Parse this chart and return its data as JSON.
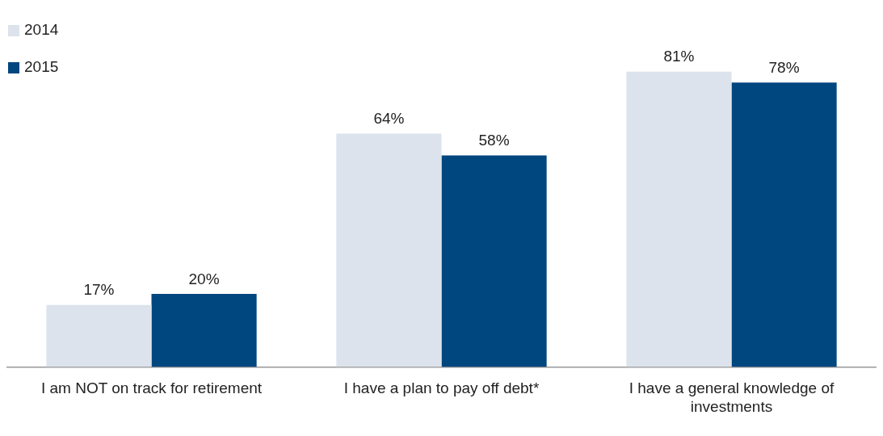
{
  "chart_data": {
    "type": "bar",
    "categories": [
      "I am NOT on track for retirement",
      "I have a plan to pay off debt*",
      "I have a general knowledge of investments"
    ],
    "series": [
      {
        "name": "2014",
        "color": "#dce3ec",
        "values": [
          17,
          64,
          81
        ],
        "value_labels": [
          "17%",
          "64%",
          "81%"
        ]
      },
      {
        "name": "2015",
        "color": "#00467f",
        "values": [
          20,
          58,
          78
        ],
        "value_labels": [
          "20%",
          "58%",
          "78%"
        ]
      }
    ],
    "legend": "top left",
    "grid": false
  }
}
